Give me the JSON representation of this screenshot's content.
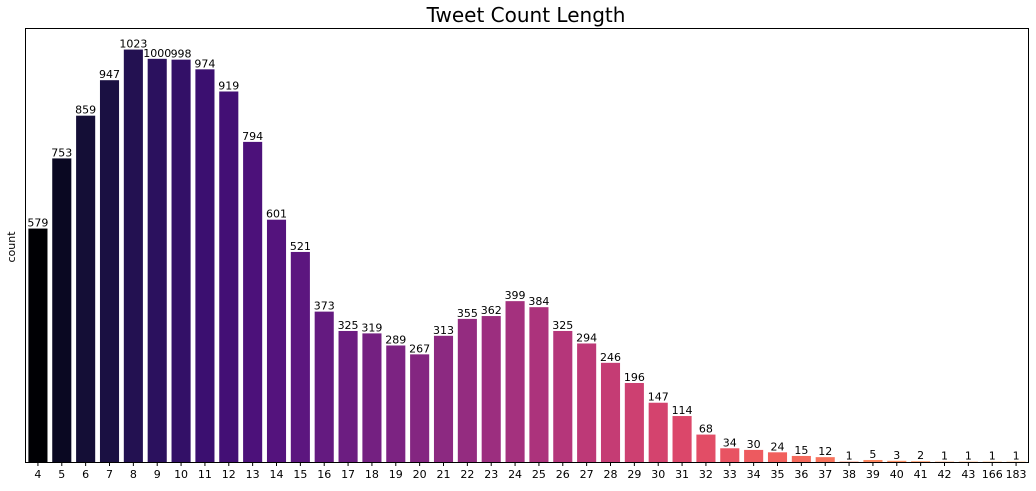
{
  "chart_data": {
    "type": "bar",
    "title": "Tweet Count Length",
    "xlabel": "",
    "ylabel": "count",
    "ylim": [
      0,
      1074
    ],
    "grid": false,
    "show_y_ticks": false,
    "colormap": "magma",
    "categories": [
      "4",
      "5",
      "6",
      "7",
      "8",
      "9",
      "10",
      "11",
      "12",
      "13",
      "14",
      "15",
      "16",
      "17",
      "18",
      "19",
      "20",
      "21",
      "22",
      "23",
      "24",
      "25",
      "26",
      "27",
      "28",
      "29",
      "30",
      "31",
      "32",
      "33",
      "34",
      "35",
      "36",
      "37",
      "38",
      "39",
      "40",
      "41",
      "42",
      "43",
      "166",
      "183"
    ],
    "values": [
      579,
      753,
      859,
      947,
      1023,
      1000,
      998,
      974,
      919,
      794,
      601,
      521,
      373,
      325,
      319,
      289,
      267,
      313,
      355,
      362,
      399,
      384,
      325,
      294,
      246,
      196,
      147,
      114,
      68,
      34,
      30,
      24,
      15,
      12,
      1,
      5,
      3,
      2,
      1,
      1,
      1,
      1
    ],
    "data_labels": [
      "579",
      "753",
      "859",
      "947",
      "1023",
      "1000",
      "998",
      "974",
      "919",
      "794",
      "601",
      "521",
      "373",
      "325",
      "319",
      "289",
      "267",
      "313",
      "355",
      "362",
      "399",
      "384",
      "325",
      "294",
      "246",
      "196",
      "147",
      "114",
      "68",
      "34",
      "30",
      "24",
      "15",
      "12",
      "1",
      "5",
      "3",
      "2",
      "1",
      "1",
      "1",
      "1"
    ],
    "colors": [
      "#000004",
      "#0a0822",
      "#140e36",
      "#1a1042",
      "#231151",
      "#2b115e",
      "#331067",
      "#3b0f70",
      "#430f75",
      "#4c117a",
      "#54137d",
      "#5c167f",
      "#641a80",
      "#6c1d81",
      "#742081",
      "#7c2382",
      "#842681",
      "#8c2981",
      "#942c80",
      "#9c2e7f",
      "#a4317e",
      "#ac337c",
      "#b5367a",
      "#bd3977",
      "#c53c74",
      "#cd4071",
      "#d4436e",
      "#db476a",
      "#e24d66",
      "#e85362",
      "#ed5a5f",
      "#f1605d",
      "#f4695c",
      "#f7725c",
      "#f97c5d",
      "#fa8660",
      "#fc9065",
      "#fd9a6a",
      "#fda370",
      "#feac76",
      "#feb67c",
      "#febf84"
    ]
  }
}
